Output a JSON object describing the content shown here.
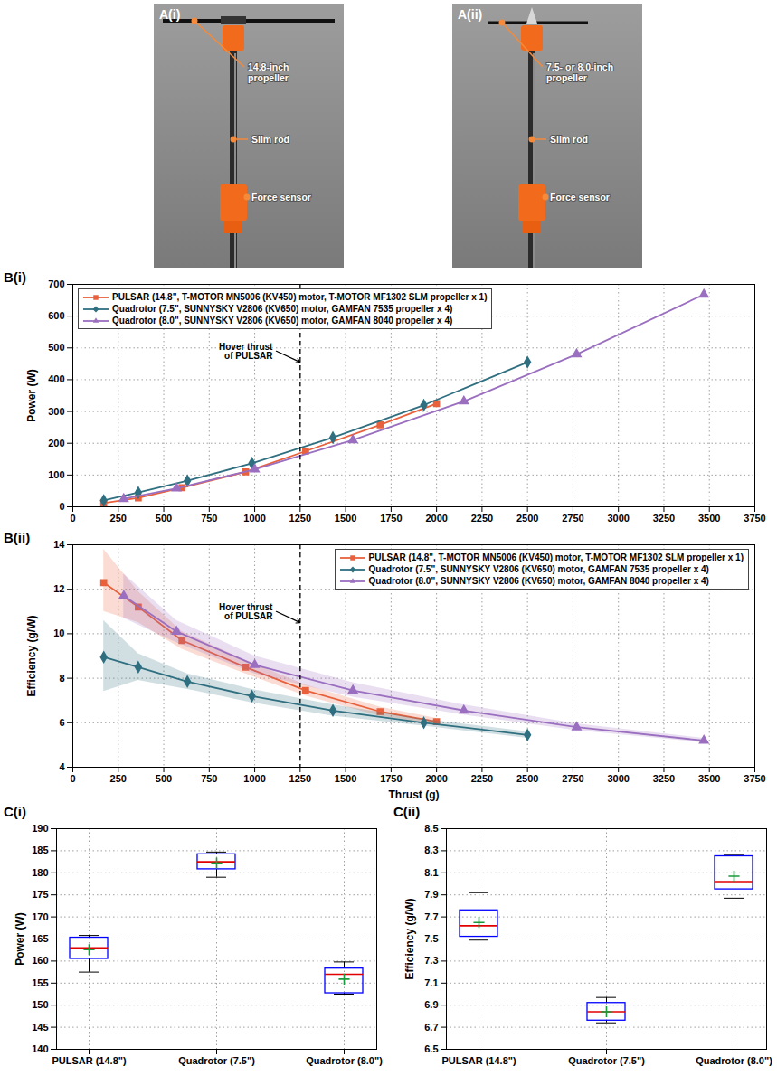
{
  "photos": [
    {
      "label": "A(i)",
      "callouts": [
        "14.8-inch propeller",
        "Slim rod",
        "Force sensor"
      ]
    },
    {
      "label": "A(ii)",
      "callouts": [
        "7.5- or 8.0-inch propeller",
        "Slim rod",
        "Force sensor"
      ]
    }
  ],
  "chart_data": [
    {
      "type": "line",
      "panel": "B(i)",
      "ylabel": "Power (W)",
      "xlim": [
        0,
        3750
      ],
      "xticks": [
        0,
        250,
        500,
        750,
        1000,
        1250,
        1500,
        1750,
        2000,
        2250,
        2500,
        2750,
        3000,
        3250,
        3500,
        3750
      ],
      "ylim": [
        0,
        700
      ],
      "yticks": [
        0,
        100,
        200,
        300,
        400,
        500,
        600,
        700
      ],
      "grid": true,
      "legend": "top-left",
      "annotation": {
        "x": 1250,
        "text": "Hover thrust of PULSAR"
      },
      "series": [
        {
          "name": "PULSAR (14.8\", T-MOTOR MN5006 (KV450) motor, T-MOTOR MF1302 SLM propeller x 1)",
          "color": "#e8613c",
          "marker": "square",
          "x": [
            170,
            360,
            600,
            950,
            1280,
            1690,
            2000
          ],
          "values": [
            12,
            28,
            60,
            110,
            175,
            258,
            325
          ]
        },
        {
          "name": "Quadrotor (7.5\", SUNNYSKY V2806 (KV650) motor, GAMFAN 7535 propeller x 4)",
          "color": "#2f6f80",
          "marker": "diamond",
          "x": [
            170,
            360,
            630,
            985,
            1430,
            1930,
            2500
          ],
          "values": [
            20,
            45,
            82,
            137,
            218,
            320,
            455
          ]
        },
        {
          "name": "Quadrotor (8.0\", SUNNYSKY V2806 (KV650) motor, GAMFAN 8040 propeller x 4)",
          "color": "#9b6fc0",
          "marker": "triangle",
          "x": [
            280,
            570,
            1000,
            1540,
            2150,
            2770,
            3470
          ],
          "values": [
            25,
            58,
            118,
            210,
            332,
            480,
            668
          ]
        }
      ]
    },
    {
      "type": "line",
      "panel": "B(ii)",
      "xlabel": "Thrust (g)",
      "ylabel": "Efficiency (g/W)",
      "xlim": [
        0,
        3750
      ],
      "xticks": [
        0,
        250,
        500,
        750,
        1000,
        1250,
        1500,
        1750,
        2000,
        2250,
        2500,
        2750,
        3000,
        3250,
        3500,
        3750
      ],
      "ylim": [
        4,
        14
      ],
      "yticks": [
        4,
        6,
        8,
        10,
        12,
        14
      ],
      "grid": true,
      "legend": "top-right",
      "annotation": {
        "x": 1250,
        "text": "Hover thrust of PULSAR"
      },
      "series": [
        {
          "name": "PULSAR (14.8\", T-MOTOR  MN5006 (KV450) motor, T-MOTOR MF1302 SLM propeller x 1)",
          "color": "#e8613c",
          "marker": "square",
          "x": [
            170,
            360,
            600,
            950,
            1280,
            1690,
            2000
          ],
          "values": [
            12.3,
            11.2,
            9.7,
            8.5,
            7.45,
            6.5,
            6.05
          ],
          "lower": [
            11.0,
            10.5,
            9.3,
            8.2,
            7.2,
            6.3,
            5.9
          ],
          "upper": [
            13.8,
            11.9,
            10.1,
            8.8,
            7.7,
            6.7,
            6.2
          ]
        },
        {
          "name": "Quadrotor (7.5\", SUNNYSKY V2806 (KV650) motor, GAMFAN 7535 propeller x 4)",
          "color": "#2f6f80",
          "marker": "diamond",
          "x": [
            170,
            360,
            630,
            985,
            1430,
            1930,
            2500
          ],
          "values": [
            8.95,
            8.5,
            7.85,
            7.2,
            6.55,
            6.0,
            5.45
          ],
          "lower": [
            7.4,
            7.9,
            7.5,
            6.9,
            6.3,
            5.85,
            5.3
          ],
          "upper": [
            10.6,
            9.1,
            8.2,
            7.5,
            6.8,
            6.15,
            5.6
          ]
        },
        {
          "name": "Quadrotor (8.0\", SUNNYSKY V2806 (KV650) motor, GAMFAN 8040 propeller x 4)",
          "color": "#9b6fc0",
          "marker": "triangle",
          "x": [
            280,
            570,
            1000,
            1540,
            2150,
            2770,
            3470
          ],
          "values": [
            11.7,
            10.1,
            8.6,
            7.45,
            6.55,
            5.8,
            5.2
          ],
          "lower": [
            10.7,
            9.6,
            8.2,
            7.15,
            6.35,
            5.65,
            5.1
          ],
          "upper": [
            12.7,
            10.6,
            9.0,
            7.8,
            6.8,
            5.95,
            5.3
          ]
        }
      ]
    },
    {
      "type": "box",
      "panel": "C(i)",
      "ylabel": "Power (W)",
      "categories": [
        "PULSAR (14.8\")",
        "Quadrotor (7.5\")",
        "Quadrotor (8.0\")"
      ],
      "ylim": [
        140,
        190
      ],
      "yticks": [
        140,
        145,
        150,
        155,
        160,
        165,
        170,
        175,
        180,
        185,
        190
      ],
      "grid": true,
      "color": "#0000ff",
      "min": [
        157.5,
        179.0,
        152.5
      ],
      "q1": [
        160.5,
        180.8,
        152.7
      ],
      "median": [
        163.0,
        182.5,
        157.0
      ],
      "q3": [
        165.3,
        184.2,
        158.3
      ],
      "max": [
        165.8,
        184.7,
        159.8
      ],
      "mean": [
        162.6,
        182.2,
        155.9
      ]
    },
    {
      "type": "box",
      "panel": "C(ii)",
      "ylabel": "Efficiency (g/W)",
      "categories": [
        "PULSAR (14.8\")",
        "Quadrotor (7.5\")",
        "Quadrotor (8.0\")"
      ],
      "ylim": [
        6.5,
        8.5
      ],
      "yticks": [
        6.5,
        6.7,
        6.9,
        7.1,
        7.3,
        7.5,
        7.7,
        7.9,
        8.1,
        8.3,
        8.5
      ],
      "grid": true,
      "color": "#0000ff",
      "min": [
        7.49,
        6.74,
        7.87
      ],
      "q1": [
        7.52,
        6.76,
        7.95
      ],
      "median": [
        7.62,
        6.84,
        8.02
      ],
      "q3": [
        7.76,
        6.92,
        8.25
      ],
      "max": [
        7.92,
        6.97,
        8.26
      ],
      "mean": [
        7.65,
        6.84,
        8.07
      ]
    }
  ]
}
